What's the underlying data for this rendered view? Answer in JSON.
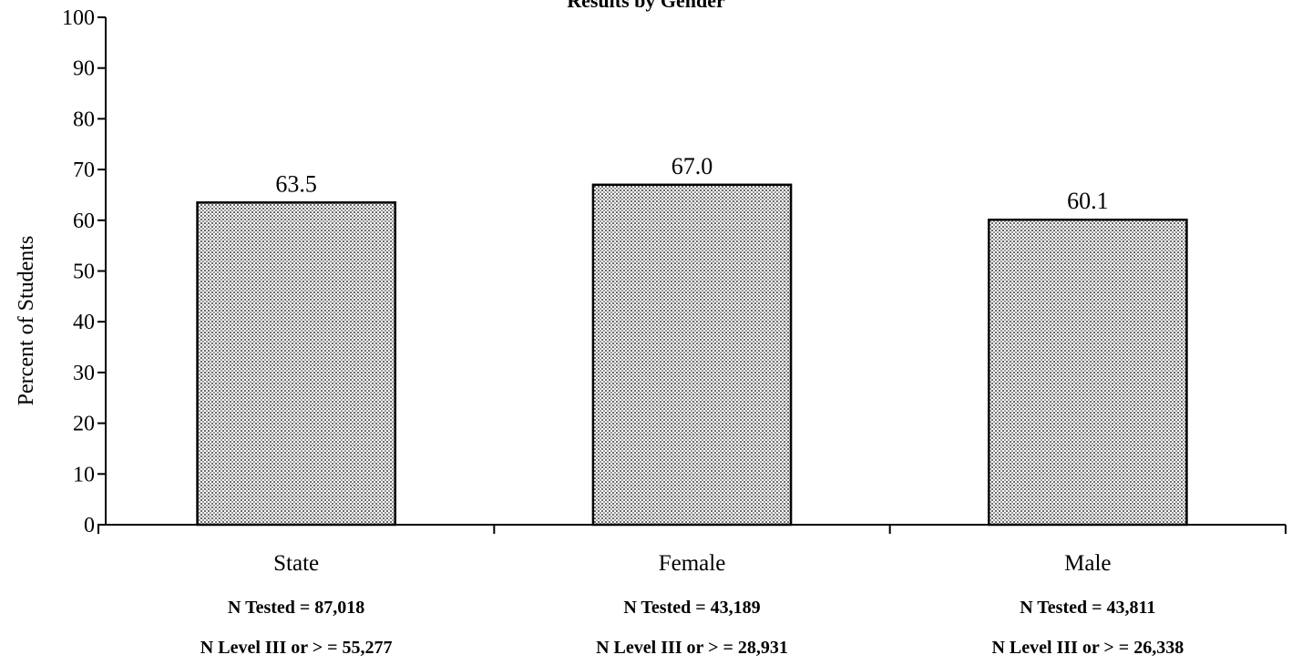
{
  "chart_data": {
    "type": "bar",
    "title": "Results by Gender",
    "ylabel": "Percent of Students",
    "xlabel": "",
    "ylim": [
      0,
      100
    ],
    "yticks": [
      0,
      10,
      20,
      30,
      40,
      50,
      60,
      70,
      80,
      90,
      100
    ],
    "categories": [
      "State",
      "Female",
      "Male"
    ],
    "values": [
      63.5,
      67.0,
      60.1
    ],
    "value_labels": [
      "63.5",
      "67.0",
      "60.1"
    ],
    "notes": [
      {
        "tested": "N Tested = 87,018",
        "level": "N Level III or > = 55,277"
      },
      {
        "tested": "N Tested = 43,189",
        "level": "N Level III or > = 28,931"
      },
      {
        "tested": "N Tested = 43,811",
        "level": "N Level III or > = 26,338"
      }
    ],
    "grid": false,
    "bar_pattern": "dotted-gray"
  }
}
